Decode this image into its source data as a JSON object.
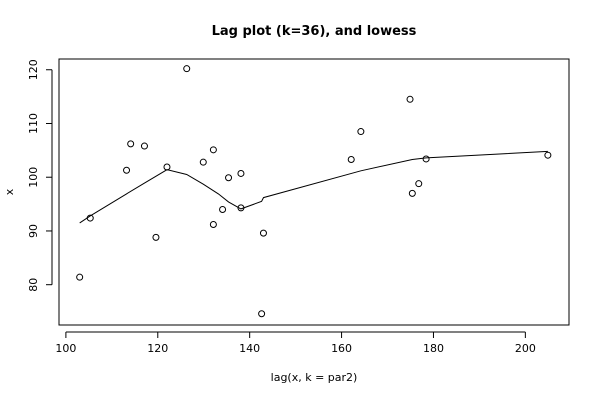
{
  "chart_data": {
    "type": "scatter",
    "title": "Lag plot (k=36), and lowess",
    "xlabel": "lag(x, k = par2)",
    "ylabel": "x",
    "xlim": [
      98.5,
      209.5
    ],
    "ylim": [
      72.5,
      122
    ],
    "x_ticks": [
      100,
      120,
      140,
      160,
      180,
      200
    ],
    "y_ticks": [
      80,
      90,
      100,
      110,
      120
    ],
    "grid": false,
    "legend": "none",
    "points": [
      {
        "x": 103.0,
        "y": 81.4
      },
      {
        "x": 105.3,
        "y": 92.4
      },
      {
        "x": 113.2,
        "y": 101.3
      },
      {
        "x": 114.1,
        "y": 106.2
      },
      {
        "x": 117.1,
        "y": 105.8
      },
      {
        "x": 119.6,
        "y": 88.8
      },
      {
        "x": 122.0,
        "y": 101.9
      },
      {
        "x": 126.3,
        "y": 120.2
      },
      {
        "x": 129.9,
        "y": 102.8
      },
      {
        "x": 132.1,
        "y": 91.2
      },
      {
        "x": 132.1,
        "y": 105.1
      },
      {
        "x": 134.1,
        "y": 94.0
      },
      {
        "x": 135.4,
        "y": 99.9
      },
      {
        "x": 138.1,
        "y": 100.7
      },
      {
        "x": 138.1,
        "y": 94.3
      },
      {
        "x": 142.6,
        "y": 74.6
      },
      {
        "x": 143.0,
        "y": 89.6
      },
      {
        "x": 162.1,
        "y": 103.3
      },
      {
        "x": 164.2,
        "y": 108.5
      },
      {
        "x": 174.9,
        "y": 114.5
      },
      {
        "x": 175.4,
        "y": 97.0
      },
      {
        "x": 176.8,
        "y": 98.8
      },
      {
        "x": 178.4,
        "y": 103.4
      },
      {
        "x": 204.9,
        "y": 104.1
      }
    ],
    "lowess": [
      {
        "x": 103.0,
        "y": 91.5
      },
      {
        "x": 105.3,
        "y": 92.8
      },
      {
        "x": 113.2,
        "y": 96.9
      },
      {
        "x": 117.1,
        "y": 98.9
      },
      {
        "x": 122.0,
        "y": 101.4
      },
      {
        "x": 126.3,
        "y": 100.5
      },
      {
        "x": 129.9,
        "y": 98.7
      },
      {
        "x": 133.2,
        "y": 96.9
      },
      {
        "x": 135.4,
        "y": 95.4
      },
      {
        "x": 138.1,
        "y": 94.1
      },
      {
        "x": 142.6,
        "y": 95.5
      },
      {
        "x": 143.0,
        "y": 96.2
      },
      {
        "x": 164.2,
        "y": 101.2
      },
      {
        "x": 175.4,
        "y": 103.3
      },
      {
        "x": 178.4,
        "y": 103.6
      },
      {
        "x": 204.9,
        "y": 104.8
      }
    ]
  }
}
